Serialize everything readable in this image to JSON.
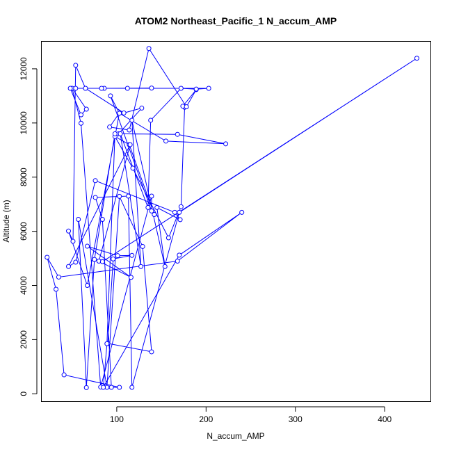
{
  "chart_data": {
    "type": "line",
    "title": "ATOM2 Northeast_Pacific_1 N_accum_AMP",
    "xlabel": "N_accum_AMP",
    "ylabel": "Altitude (m)",
    "xlim": [
      16,
      452
    ],
    "ylim": [
      -300,
      13000
    ],
    "xticks": [
      100,
      200,
      300,
      400
    ],
    "yticks": [
      0,
      2000,
      4000,
      6000,
      8000,
      10000,
      12000
    ],
    "markers": "open-circle",
    "color": "#0000ff",
    "grid": false,
    "series": [
      {
        "x": [
          142,
          114,
          98,
          118,
          158,
          172,
          176,
          174,
          189,
          178,
          136,
          114,
          92,
          103,
          67,
          46,
          51,
          54,
          65,
          108,
          128,
          102,
          168,
          222,
          155,
          103,
          93,
          139,
          139,
          82,
          60,
          50,
          66,
          60,
          48,
          54,
          86,
          112,
          139,
          83,
          203,
          189,
          172,
          138,
          135,
          104,
          127,
          117,
          154,
          145,
          171,
          165,
          76,
          54,
          46,
          115,
          80,
          116,
          67,
          101,
          117,
          96,
          90,
          139,
          129,
          103,
          89,
          57,
          66,
          75,
          98,
          89,
          85,
          170,
          240,
          168,
          35,
          22,
          32,
          41,
          103,
          94,
          84,
          76,
          113,
          117,
          170,
          436,
          84
        ],
        "y": [
          6620,
          9200,
          9500,
          8330,
          5760,
          6910,
          10580,
          10620,
          11230,
          10600,
          12750,
          9740,
          9850,
          10370,
          4000,
          6010,
          5630,
          12130,
          11280,
          10370,
          10550,
          9600,
          9580,
          9230,
          9330,
          10360,
          11000,
          6750,
          7300,
          250,
          9990,
          11280,
          10510,
          10300,
          11280,
          11280,
          11280,
          11280,
          11290,
          11280,
          11280,
          11250,
          11280,
          10100,
          6880,
          9600,
          4700,
          10100,
          4700,
          6880,
          6430,
          6700,
          7870,
          4860,
          4700,
          9200,
          4900,
          4300,
          5450,
          5100,
          5110,
          4980,
          1860,
          1550,
          5440,
          7290,
          240,
          6440,
          230,
          4960,
          9600,
          1850,
          240,
          5120,
          6700,
          4900,
          4310,
          5040,
          3860,
          700,
          240,
          240,
          6440,
          7250,
          7300,
          240,
          6700,
          12390,
          4880
        ]
      }
    ]
  }
}
